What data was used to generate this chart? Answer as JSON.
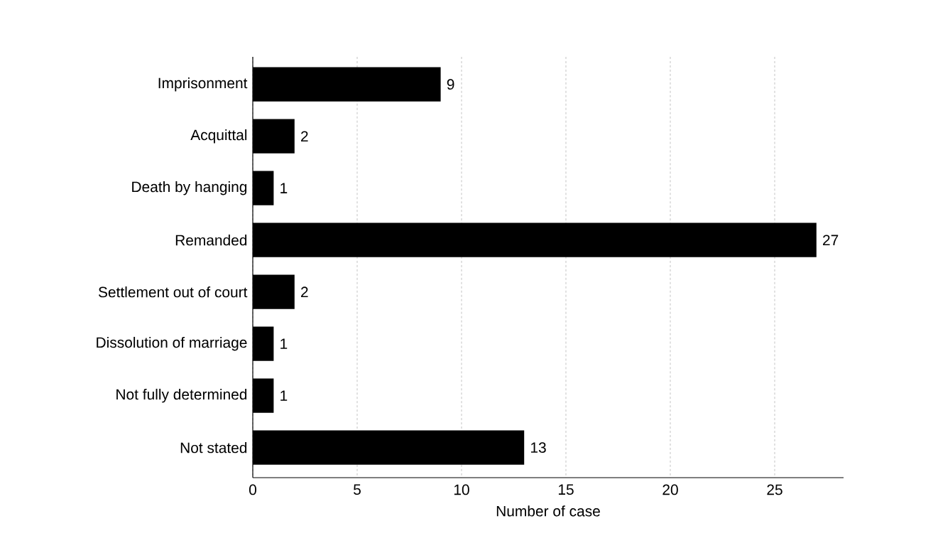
{
  "chart_data": {
    "type": "bar",
    "orientation": "horizontal",
    "xlabel": "Number of case",
    "categories": [
      "Imprisonment",
      "Acquittal",
      "Death by hanging",
      "Remanded",
      "Settlement out of court",
      "Dissolution of marriage",
      "Not fully determined",
      "Not stated"
    ],
    "values": [
      9,
      2,
      1,
      27,
      2,
      1,
      1,
      13
    ],
    "color": "#000000",
    "xlim": [
      0,
      28.3
    ],
    "xticks": [
      0,
      5,
      10,
      15,
      20,
      25
    ],
    "grid": "x",
    "data_labels": true
  }
}
